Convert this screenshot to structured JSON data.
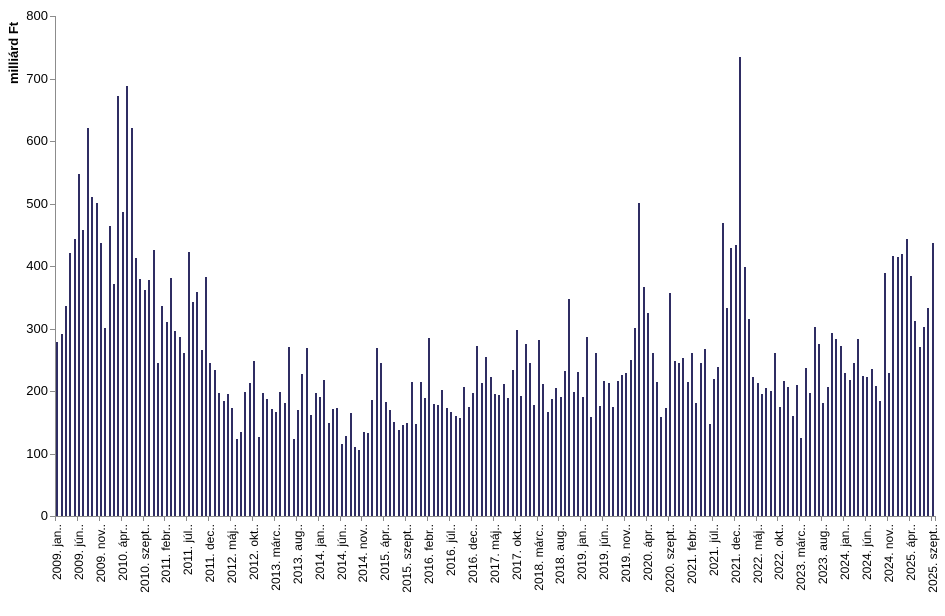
{
  "chart_data": {
    "type": "bar",
    "title": "",
    "ylabel": "milliárd Ft",
    "xlabel": "",
    "ylim": [
      0,
      800
    ],
    "ytick_step": 100,
    "yticks": [
      0,
      100,
      200,
      300,
      400,
      500,
      600,
      700,
      800
    ],
    "grid": false,
    "legend": "none",
    "bar_color": "#2f2d63",
    "axis_color": "#8c8c8c",
    "n_bars": 201,
    "first_category": "2009. jan.",
    "last_category": "2025. szept.",
    "start_year": 2009,
    "month_abbrevs": [
      "jan.",
      "febr.",
      "márc.",
      "ápr.",
      "máj.",
      "jún.",
      "júl.",
      "aug.",
      "szept.",
      "okt.",
      "nov.",
      "dec."
    ],
    "xtick_every": 5,
    "xtick_labels": [
      "2009. jan..",
      "2009. jún..",
      "2009. nov..",
      "2010. ápr..",
      "2010. szept..",
      "2011. febr..",
      "2011. júl..",
      "2011. dec..",
      "2012. máj..",
      "2012. okt..",
      "2013. márc..",
      "2013. aug..",
      "2014. jan..",
      "2014. jún..",
      "2014. nov..",
      "2015. ápr..",
      "2015. szept..",
      "2016. febr..",
      "2016. júl..",
      "2016. dec..",
      "2017. máj..",
      "2017. okt..",
      "2018. márc..",
      "2018. aug..",
      "2019. jan..",
      "2019. jún..",
      "2019. nov..",
      "2020. ápr..",
      "2020. szept..",
      "2021. febr..",
      "2021. júl..",
      "2021. dec..",
      "2022. máj..",
      "2022. okt..",
      "2023. márc..",
      "2023. aug..",
      "2024. jan..",
      "2024. jún..",
      "2024. nov..",
      "2025. ápr..",
      "2025. szept.."
    ],
    "values": [
      279,
      291,
      336,
      420,
      443,
      547,
      458,
      620,
      511,
      501,
      436,
      300,
      464,
      371,
      672,
      487,
      688,
      620,
      412,
      379,
      362,
      378,
      426,
      244,
      336,
      310,
      381,
      296,
      287,
      260,
      423,
      343,
      358,
      266,
      382,
      245,
      234,
      196,
      184,
      195,
      172,
      123,
      134,
      199,
      212,
      248,
      127,
      197,
      187,
      171,
      167,
      199,
      180,
      270,
      123,
      170,
      227,
      269,
      162,
      196,
      190,
      218,
      149,
      171,
      172,
      115,
      128,
      164,
      111,
      105,
      135,
      132,
      186,
      268,
      245,
      183,
      169,
      151,
      138,
      146,
      149,
      214,
      147,
      215,
      188,
      284,
      179,
      178,
      202,
      172,
      167,
      160,
      156,
      207,
      175,
      196,
      272,
      213,
      254,
      222,
      195,
      193,
      211,
      188,
      233,
      298,
      192,
      275,
      244,
      177,
      282,
      211,
      166,
      187,
      204,
      190,
      232,
      347,
      198,
      231,
      191,
      286,
      159,
      260,
      176,
      216,
      212,
      175,
      216,
      226,
      228,
      250,
      300,
      500,
      366,
      325,
      260,
      215,
      159,
      172,
      356,
      248,
      244,
      253,
      215,
      260,
      180,
      245,
      267,
      147,
      219,
      239,
      468,
      332,
      428,
      433,
      735,
      399,
      315,
      223,
      212,
      195,
      204,
      200,
      260,
      175,
      216,
      207,
      160,
      210,
      124,
      236,
      196,
      302,
      275,
      180,
      206,
      293,
      283,
      272,
      229,
      218,
      245,
      283,
      224,
      222,
      235,
      208,
      184,
      389,
      229,
      416,
      415,
      419,
      443,
      384,
      312,
      270,
      302,
      332,
      437
    ]
  }
}
